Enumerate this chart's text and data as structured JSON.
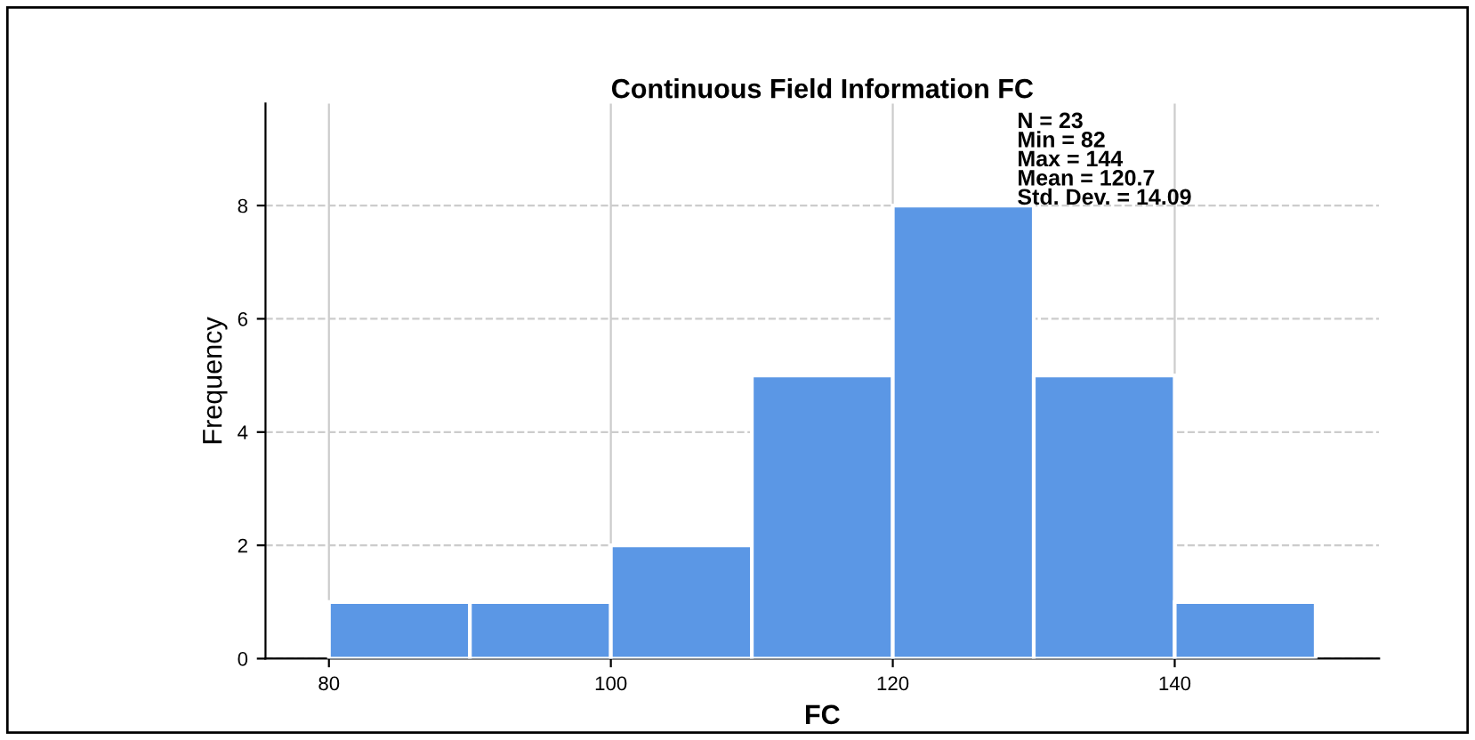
{
  "chart_data": {
    "type": "histogram",
    "title": "Continuous Field Information FC",
    "xlabel": "FC",
    "ylabel": "Frequency",
    "bins": [
      80,
      90,
      100,
      110,
      120,
      130,
      140,
      150
    ],
    "values": [
      1,
      1,
      2,
      5,
      8,
      5,
      1
    ],
    "color": "#5b97e5",
    "xlim": [
      75.5,
      154.5
    ],
    "ylim": [
      0,
      9.8
    ],
    "xticks": [
      80,
      100,
      120,
      140
    ],
    "yticks": [
      0,
      2,
      4,
      6,
      8
    ],
    "grid": true,
    "annotations": [
      "N = 23\nMin = 82\nMax = 144\nMean = 120.7\nStd. Dev. = 14.09"
    ]
  }
}
